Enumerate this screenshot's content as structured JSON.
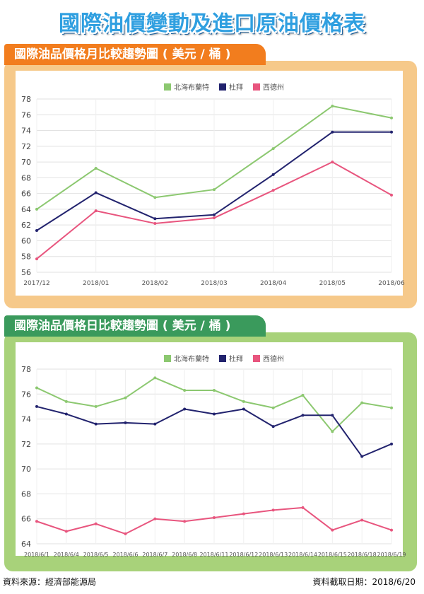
{
  "header": {
    "title": "國際油價變動及進口原油價格表"
  },
  "panels": {
    "monthly_title": "國際油品價格月比較趨勢圖 ( 美元 / 桶 )",
    "daily_title": "國際油品價格日比較趨勢圖 ( 美元 / 桶 )"
  },
  "footer": {
    "source": "資料來源：經濟部能源局",
    "date": "資料截取日期：2018/6/20"
  },
  "colors": {
    "brent": "#8cc870",
    "dubai": "#22236e",
    "wti": "#e8557e"
  },
  "chart_data": [
    {
      "id": "monthly",
      "type": "line",
      "title": "國際油品價格月比較趨勢圖 ( 美元 / 桶 )",
      "categories": [
        "2017/12",
        "2018/01",
        "2018/02",
        "2018/03",
        "2018/04",
        "2018/05",
        "2018/06"
      ],
      "ylim": [
        56,
        78
      ],
      "yticks": [
        56,
        58,
        60,
        62,
        64,
        66,
        68,
        70,
        72,
        74,
        76,
        78
      ],
      "grid": true,
      "legend_position": "top-center",
      "series": [
        {
          "name": "北海布蘭特",
          "color": "#8cc870",
          "values": [
            64.0,
            69.2,
            65.5,
            66.5,
            71.7,
            77.1,
            75.6
          ]
        },
        {
          "name": "杜拜",
          "color": "#22236e",
          "values": [
            61.3,
            66.1,
            62.8,
            63.3,
            68.4,
            73.8,
            73.8
          ]
        },
        {
          "name": "西德州",
          "color": "#e8557e",
          "values": [
            57.7,
            63.8,
            62.2,
            62.9,
            66.4,
            70.0,
            65.8
          ]
        }
      ]
    },
    {
      "id": "daily",
      "type": "line",
      "title": "國際油品價格日比較趨勢圖 ( 美元 / 桶 )",
      "categories": [
        "2018/6/1",
        "2018/6/4",
        "2018/6/5",
        "2018/6/6",
        "2018/6/7",
        "2018/6/8",
        "2018/6/11",
        "2018/6/12",
        "2018/6/13",
        "2018/6/14",
        "2018/6/15",
        "2018/6/18",
        "2018/6/19"
      ],
      "ylim": [
        64,
        78
      ],
      "yticks": [
        64,
        66,
        68,
        70,
        72,
        74,
        76,
        78
      ],
      "grid": true,
      "legend_position": "top-center",
      "series": [
        {
          "name": "北海布蘭特",
          "color": "#8cc870",
          "values": [
            76.5,
            75.4,
            75.0,
            75.7,
            77.3,
            76.3,
            76.3,
            75.4,
            74.9,
            75.9,
            73.0,
            75.3,
            74.9
          ]
        },
        {
          "name": "杜拜",
          "color": "#22236e",
          "values": [
            75.0,
            74.4,
            73.6,
            73.7,
            73.6,
            74.8,
            74.4,
            74.8,
            73.4,
            74.3,
            74.3,
            71.0,
            72.0
          ]
        },
        {
          "name": "西德州",
          "color": "#e8557e",
          "values": [
            65.8,
            65.0,
            65.6,
            64.8,
            66.0,
            65.8,
            66.1,
            66.4,
            66.7,
            66.9,
            65.1,
            65.9,
            65.1
          ]
        }
      ]
    }
  ]
}
